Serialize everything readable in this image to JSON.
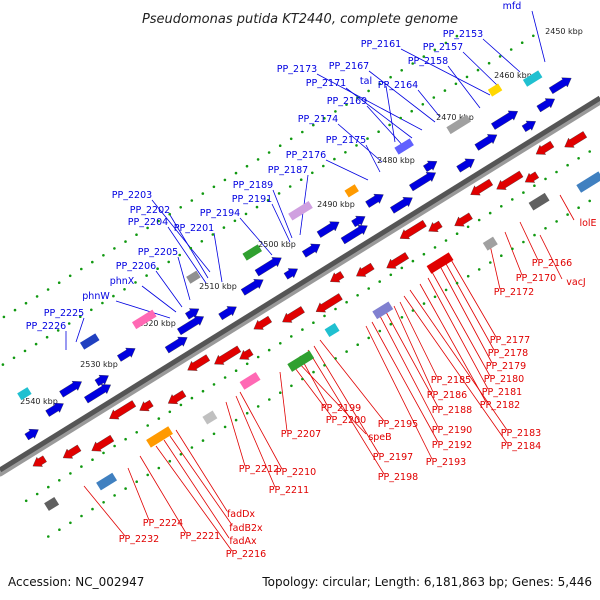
{
  "title": "Pseudomonas putida KT2440, complete genome",
  "footer": {
    "accession": "Accession: NC_002947",
    "summary": "Topology: circular; Length: 6,181,863 bp; Genes: 5,446"
  },
  "colors": {
    "forward": "#0000e0",
    "reverse": "#e00000",
    "backbone": "#555555",
    "ticks": "#119911"
  },
  "ticks": [
    "2450 kbp",
    "2460 kbp",
    "2470 kbp",
    "2480 kbp",
    "2490 kbp",
    "2500 kbp",
    "2510 kbp",
    "2520 kbp",
    "2530 kbp",
    "2540 kbp"
  ],
  "forward_labels": [
    "mfd",
    "PP_2153",
    "PP_2157",
    "PP_2161",
    "PP_2158",
    "PP_2167",
    "PP_2173",
    "PP_2171",
    "tal",
    "PP_2164",
    "PP_2169",
    "PP_2174",
    "PP_2175",
    "PP_2176",
    "PP_2187",
    "PP_2189",
    "PP_2191",
    "PP_2194",
    "PP_2203",
    "PP_2202",
    "PP_2204",
    "PP_2201",
    "PP_2205",
    "PP_2206",
    "phnX",
    "phnW",
    "PP_2225",
    "PP_2226"
  ],
  "reverse_labels": [
    "lolE",
    "vacJ",
    "PP_2166",
    "PP_2170",
    "PP_2172",
    "PP_2177",
    "PP_2178",
    "PP_2179",
    "PP_2180",
    "PP_2181",
    "PP_2182",
    "PP_2183",
    "PP_2184",
    "PP_2185",
    "PP_2186",
    "PP_2188",
    "PP_2190",
    "PP_2192",
    "PP_2193",
    "PP_2195",
    "PP_2197",
    "PP_2198",
    "PP_2199",
    "speB",
    "PP_2200",
    "PP_2207",
    "PP_2210",
    "PP_2211",
    "PP_2212",
    "fadDx",
    "fadB2x",
    "fadAx",
    "PP_2216",
    "PP_2221",
    "PP_2224",
    "PP_2232"
  ]
}
